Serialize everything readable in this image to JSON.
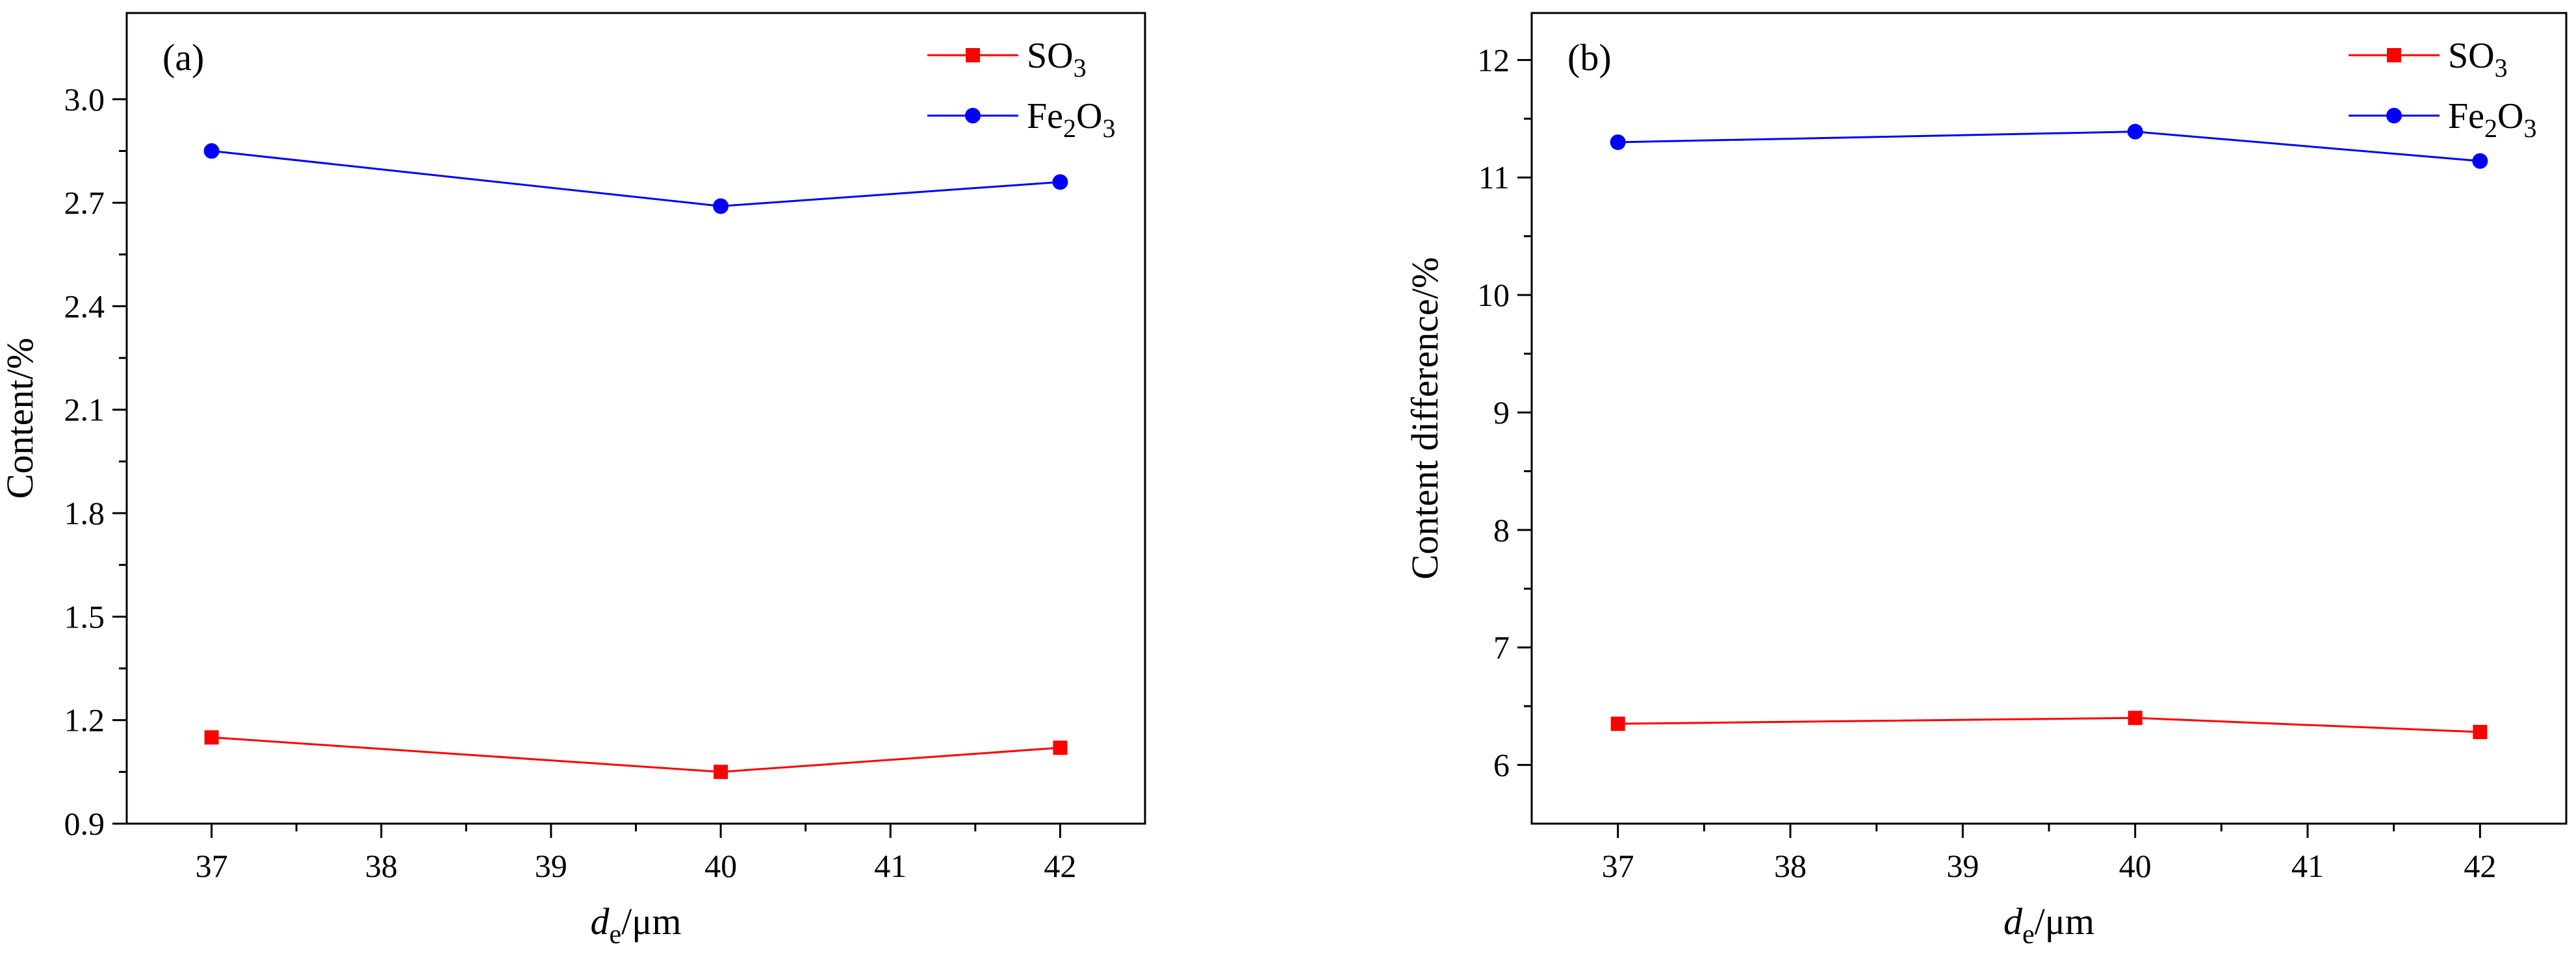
{
  "chart_data": [
    {
      "type": "line",
      "panel_label": "(a)",
      "categories": [
        "37",
        "40",
        "42"
      ],
      "x": [
        37,
        40,
        42
      ],
      "series": [
        {
          "name": "SO3",
          "formula": [
            "SO",
            "3",
            ""
          ],
          "marker": "square",
          "color": "#ff0000",
          "values": [
            1.15,
            1.05,
            1.12
          ]
        },
        {
          "name": "Fe2O3",
          "formula": [
            "Fe",
            "2",
            "O",
            "3"
          ],
          "marker": "circle",
          "color": "#0000ff",
          "values": [
            2.85,
            2.69,
            2.76
          ]
        }
      ],
      "xlabel": {
        "main": "d",
        "sub": "e",
        "rest": "/μm"
      },
      "ylabel": "Content/%",
      "xlim": [
        36.5,
        42.5
      ],
      "ylim": [
        0.9,
        3.25
      ],
      "xticks": [
        37,
        38,
        39,
        40,
        41,
        42
      ],
      "xtick_labels": [
        "37",
        "38",
        "39",
        "40",
        "41",
        "42"
      ],
      "yticks": [
        0.9,
        1.2,
        1.5,
        1.8,
        2.1,
        2.4,
        2.7,
        3.0
      ],
      "ytick_labels": [
        "0.9",
        "1.2",
        "1.5",
        "1.8",
        "2.1",
        "2.4",
        "2.7",
        "3.0"
      ],
      "legend_position": "top-right",
      "grid": false
    },
    {
      "type": "line",
      "panel_label": "(b)",
      "categories": [
        "37",
        "40",
        "42"
      ],
      "x": [
        37,
        40,
        42
      ],
      "series": [
        {
          "name": "SO3",
          "formula": [
            "SO",
            "3",
            ""
          ],
          "marker": "square",
          "color": "#ff0000",
          "values": [
            6.35,
            6.4,
            6.28
          ]
        },
        {
          "name": "Fe2O3",
          "formula": [
            "Fe",
            "2",
            "O",
            "3"
          ],
          "marker": "circle",
          "color": "#0000ff",
          "values": [
            11.3,
            11.39,
            11.14
          ]
        }
      ],
      "xlabel": {
        "main": "d",
        "sub": "e",
        "rest": "/μm"
      },
      "ylabel": "Content difference/%",
      "xlim": [
        36.5,
        42.5
      ],
      "ylim": [
        5.5,
        12.4
      ],
      "xticks": [
        37,
        38,
        39,
        40,
        41,
        42
      ],
      "xtick_labels": [
        "37",
        "38",
        "39",
        "40",
        "41",
        "42"
      ],
      "yticks": [
        6,
        7,
        8,
        9,
        10,
        11,
        12
      ],
      "ytick_labels": [
        "6",
        "7",
        "8",
        "9",
        "10",
        "11",
        "12"
      ],
      "legend_position": "top-right",
      "grid": false
    }
  ]
}
